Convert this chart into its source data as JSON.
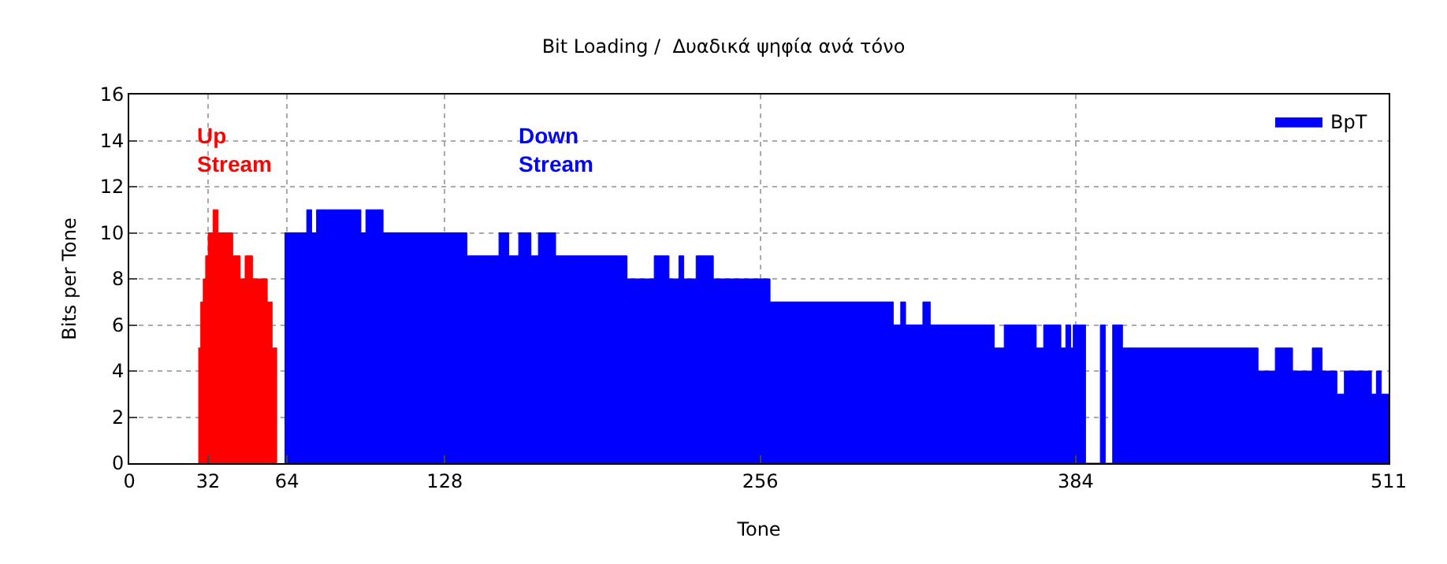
{
  "chart_data": {
    "type": "area",
    "title": "Bit Loading /  Δυαδικά ψηφία ανά τόνο",
    "xlabel": "Tone",
    "ylabel": "Bits per Tone",
    "xlim": [
      0,
      511
    ],
    "xticks": [
      0,
      32,
      64,
      128,
      256,
      384,
      511
    ],
    "ylim": [
      0,
      16
    ],
    "yticks": [
      0,
      2,
      4,
      6,
      8,
      10,
      12,
      14,
      16
    ],
    "grid": true,
    "legend": "top right",
    "series": [
      {
        "color": "#ff0000",
        "x": [
          28,
          29,
          29,
          30,
          30,
          31,
          31,
          32,
          32,
          34,
          34,
          36,
          36,
          42,
          42,
          45,
          45,
          47,
          47,
          50,
          50,
          56,
          56,
          58,
          58,
          60
        ],
        "values": [
          5,
          5,
          7,
          7,
          8,
          8,
          9,
          9,
          10,
          10,
          11,
          11,
          10,
          10,
          9,
          9,
          8,
          8,
          9,
          9,
          8,
          8,
          7,
          7,
          5,
          5
        ]
      },
      {
        "name": "BpT",
        "color": "#0000ff",
        "x": [
          63,
          72,
          72,
          74,
          74,
          76,
          76,
          94,
          94,
          96,
          96,
          103,
          103,
          137,
          137,
          150,
          150,
          154,
          154,
          158,
          158,
          163,
          163,
          166,
          166,
          173,
          173,
          202,
          202,
          213,
          213,
          219,
          219,
          223,
          223,
          225,
          225,
          230,
          230,
          237,
          237,
          260,
          260,
          310,
          310,
          313,
          313,
          315,
          315,
          322,
          322,
          325,
          325,
          351,
          351,
          355,
          355,
          368,
          368,
          371,
          371,
          378,
          378,
          380,
          380,
          382,
          382,
          383,
          383,
          388,
          388,
          394,
          394,
          396,
          396,
          399,
          399,
          403,
          403,
          458,
          458,
          465,
          465,
          472,
          472,
          480,
          480,
          484,
          484,
          490,
          490,
          493,
          493,
          504,
          504,
          506,
          506,
          508,
          508,
          511
        ],
        "values": [
          10,
          10,
          11,
          11,
          10,
          10,
          11,
          11,
          10,
          10,
          11,
          11,
          10,
          10,
          9,
          9,
          10,
          10,
          9,
          9,
          10,
          10,
          9,
          9,
          10,
          10,
          9,
          9,
          8,
          8,
          9,
          9,
          8,
          8,
          9,
          9,
          8,
          8,
          9,
          9,
          8,
          8,
          7,
          7,
          6,
          6,
          7,
          7,
          6,
          6,
          7,
          7,
          6,
          6,
          5,
          5,
          6,
          6,
          5,
          5,
          6,
          6,
          5,
          5,
          6,
          6,
          5,
          5,
          6,
          6,
          0,
          0,
          6,
          6,
          0,
          0,
          6,
          6,
          5,
          5,
          4,
          4,
          5,
          5,
          4,
          4,
          5,
          5,
          4,
          4,
          3,
          3,
          4,
          4,
          3,
          3,
          4,
          4,
          3,
          3
        ]
      }
    ],
    "annotations": [
      "Up\nStream",
      "Down\nStream"
    ]
  }
}
